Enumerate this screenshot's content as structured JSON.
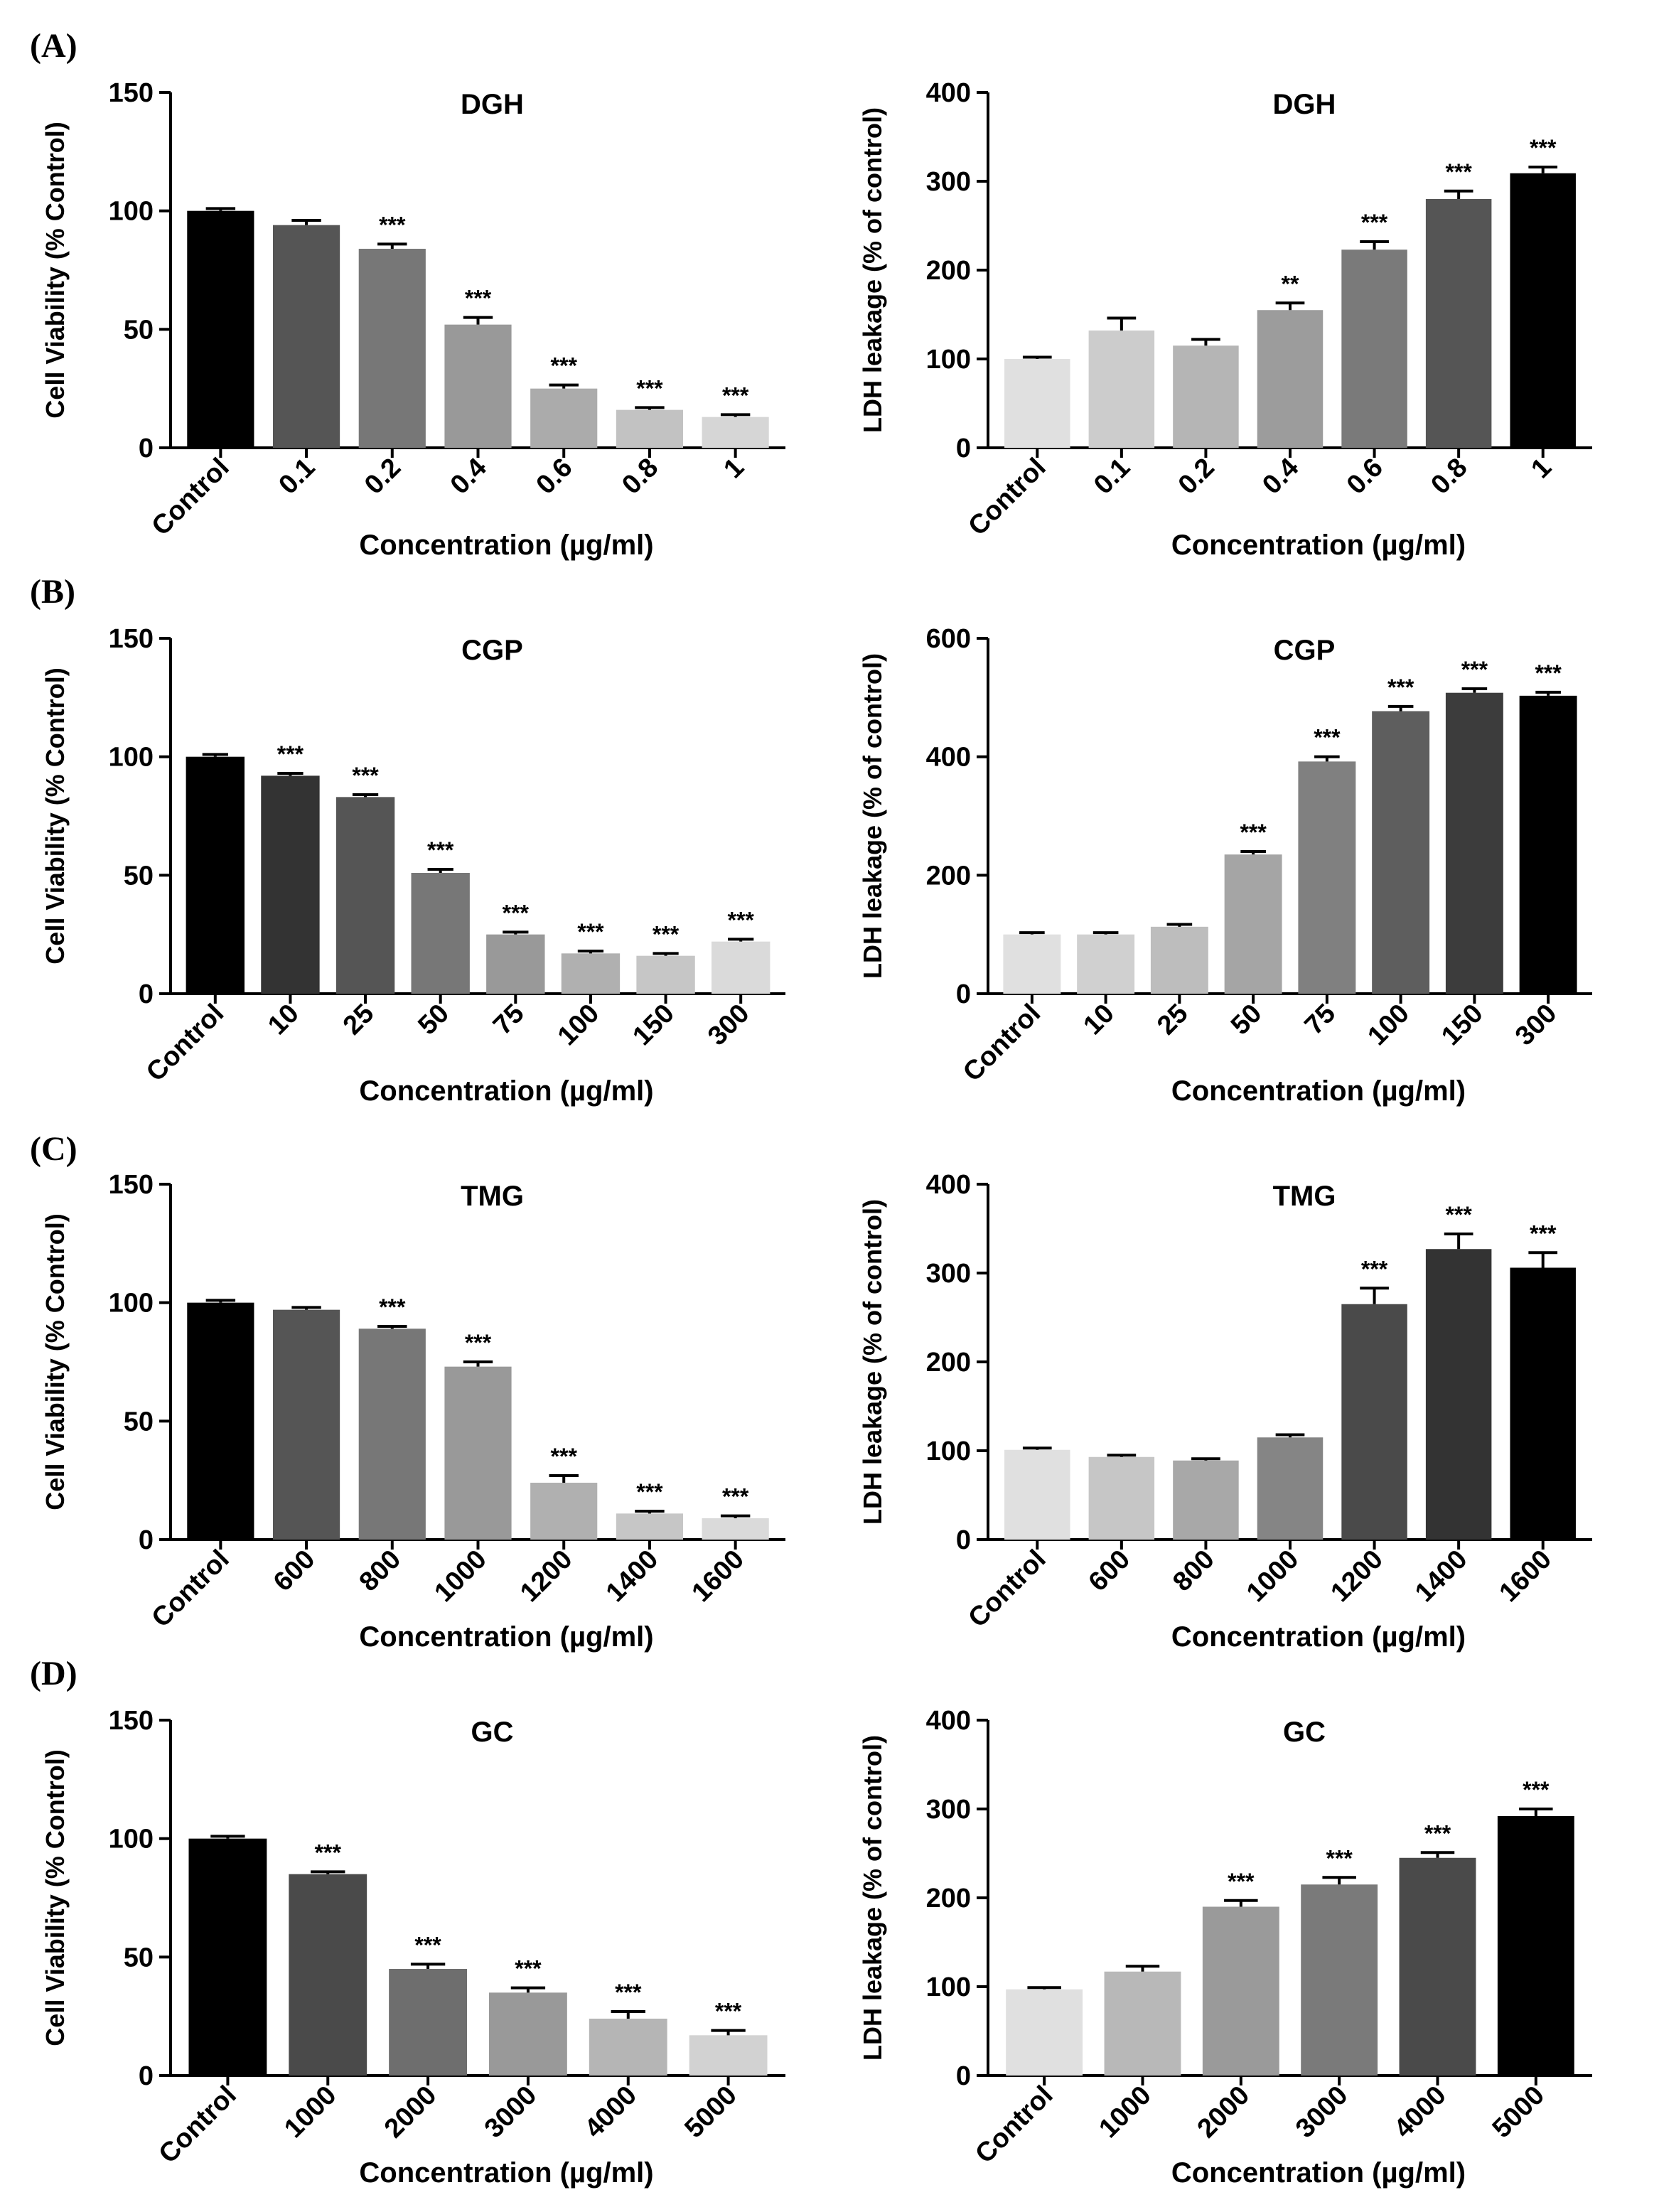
{
  "panel_labels": [
    "(A)",
    "(B)",
    "(C)",
    "(D)"
  ],
  "chart_data": [
    {
      "type": "bar",
      "title": "DGH",
      "ylabel": "Cell Viability (% Control)",
      "xlabel": "Concentration (µg/ml)",
      "ylim": [
        0,
        150
      ],
      "yticks": [
        0,
        50,
        100,
        150
      ],
      "categories": [
        "Control",
        "0.1",
        "0.2",
        "0.4",
        "0.6",
        "0.8",
        "1"
      ],
      "values": [
        100,
        94,
        84,
        52,
        25,
        16,
        13
      ],
      "errors": [
        1,
        2,
        2,
        3,
        1.5,
        1,
        1
      ],
      "significance": [
        "",
        "",
        "***",
        "***",
        "***",
        "***",
        "***"
      ],
      "colors": [
        "#000000",
        "#555555",
        "#777777",
        "#999999",
        "#ababab",
        "#c2c2c2",
        "#d6d6d6"
      ]
    },
    {
      "type": "bar",
      "title": "DGH",
      "ylabel": "LDH leakage (% of control)",
      "xlabel": "Concentration (µg/ml)",
      "ylim": [
        0,
        400
      ],
      "yticks": [
        0,
        100,
        200,
        300,
        400
      ],
      "categories": [
        "Control",
        "0.1",
        "0.2",
        "0.4",
        "0.6",
        "0.8",
        "1"
      ],
      "values": [
        100,
        132,
        115,
        155,
        223,
        280,
        309
      ],
      "errors": [
        2,
        14,
        7,
        8,
        9,
        9,
        7
      ],
      "significance": [
        "",
        "",
        "",
        "**",
        "***",
        "***",
        "***"
      ],
      "colors": [
        "#e0e0e0",
        "#cccccc",
        "#b5b5b5",
        "#9c9c9c",
        "#7a7a7a",
        "#555555",
        "#000000"
      ]
    },
    {
      "type": "bar",
      "title": "CGP",
      "ylabel": "Cell Viability (% Control)",
      "xlabel": "Concentration (µg/ml)",
      "ylim": [
        0,
        150
      ],
      "yticks": [
        0,
        50,
        100,
        150
      ],
      "categories": [
        "Control",
        "10",
        "25",
        "50",
        "75",
        "100",
        "150",
        "300"
      ],
      "values": [
        100,
        92,
        83,
        51,
        25,
        17,
        16,
        22
      ],
      "errors": [
        1,
        1,
        1,
        1.5,
        1,
        1,
        1,
        1
      ],
      "significance": [
        "",
        "***",
        "***",
        "***",
        "***",
        "***",
        "***",
        "***"
      ],
      "colors": [
        "#000000",
        "#333333",
        "#555555",
        "#777777",
        "#999999",
        "#b0b0b0",
        "#c6c6c6",
        "#dadada"
      ]
    },
    {
      "type": "bar",
      "title": "CGP",
      "ylabel": "LDH leakage (% of control)",
      "xlabel": "Concentration (µg/ml)",
      "ylim": [
        0,
        600
      ],
      "yticks": [
        0,
        200,
        400,
        600
      ],
      "categories": [
        "Control",
        "10",
        "25",
        "50",
        "75",
        "100",
        "150",
        "300"
      ],
      "values": [
        100,
        100,
        113,
        235,
        392,
        477,
        508,
        503
      ],
      "errors": [
        3,
        3,
        4,
        5,
        8,
        8,
        7,
        6
      ],
      "significance": [
        "",
        "",
        "",
        "***",
        "***",
        "***",
        "***",
        "***"
      ],
      "colors": [
        "#e0e0e0",
        "#d0d0d0",
        "#bdbdbd",
        "#a5a5a5",
        "#808080",
        "#5e5e5e",
        "#3c3c3c",
        "#000000"
      ]
    },
    {
      "type": "bar",
      "title": "TMG",
      "ylabel": "Cell Viability (% Control)",
      "xlabel": "Concentration (µg/ml)",
      "ylim": [
        0,
        150
      ],
      "yticks": [
        0,
        50,
        100,
        150
      ],
      "categories": [
        "Control",
        "600",
        "800",
        "1000",
        "1200",
        "1400",
        "1600"
      ],
      "values": [
        100,
        97,
        89,
        73,
        24,
        11,
        9
      ],
      "errors": [
        1,
        1,
        1,
        2,
        3,
        1,
        1
      ],
      "significance": [
        "",
        "",
        "***",
        "***",
        "***",
        "***",
        "***"
      ],
      "colors": [
        "#000000",
        "#555555",
        "#777777",
        "#999999",
        "#b0b0b0",
        "#c6c6c6",
        "#dadada"
      ]
    },
    {
      "type": "bar",
      "title": "TMG",
      "ylabel": "LDH leakage (% of control)",
      "xlabel": "Concentration (µg/ml)",
      "ylim": [
        0,
        400
      ],
      "yticks": [
        0,
        100,
        200,
        300,
        400
      ],
      "categories": [
        "Control",
        "600",
        "800",
        "1000",
        "1200",
        "1400",
        "1600"
      ],
      "values": [
        101,
        93,
        89,
        115,
        265,
        327,
        306
      ],
      "errors": [
        2,
        2,
        2,
        3,
        18,
        17,
        17
      ],
      "significance": [
        "",
        "",
        "",
        "",
        "***",
        "***",
        "***"
      ],
      "colors": [
        "#e0e0e0",
        "#c6c6c6",
        "#a8a8a8",
        "#858585",
        "#4a4a4a",
        "#333333",
        "#000000"
      ]
    },
    {
      "type": "bar",
      "title": "GC",
      "ylabel": "Cell Viability (% Control)",
      "xlabel": "Concentration (µg/ml)",
      "ylim": [
        0,
        150
      ],
      "yticks": [
        0,
        50,
        100,
        150
      ],
      "categories": [
        "Control",
        "1000",
        "2000",
        "3000",
        "4000",
        "5000"
      ],
      "values": [
        100,
        85,
        45,
        35,
        24,
        17
      ],
      "errors": [
        1,
        1,
        2,
        2,
        3,
        2
      ],
      "significance": [
        "",
        "***",
        "***",
        "***",
        "***",
        "***"
      ],
      "colors": [
        "#000000",
        "#4a4a4a",
        "#6e6e6e",
        "#999999",
        "#b5b5b5",
        "#d2d2d2"
      ]
    },
    {
      "type": "bar",
      "title": "GC",
      "ylabel": "LDH leakage (% of control)",
      "xlabel": "Concentration (µg/ml)",
      "ylim": [
        0,
        400
      ],
      "yticks": [
        0,
        100,
        200,
        300,
        400
      ],
      "categories": [
        "Control",
        "1000",
        "2000",
        "3000",
        "4000",
        "5000"
      ],
      "values": [
        97,
        117,
        190,
        215,
        245,
        292
      ],
      "errors": [
        2,
        6,
        7,
        8,
        6,
        8
      ],
      "significance": [
        "",
        "",
        "***",
        "***",
        "***",
        "***"
      ],
      "colors": [
        "#e0e0e0",
        "#b8b8b8",
        "#9a9a9a",
        "#7a7a7a",
        "#4a4a4a",
        "#000000"
      ]
    }
  ]
}
